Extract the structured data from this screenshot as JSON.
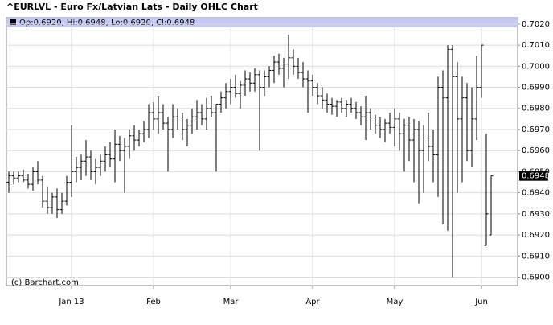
{
  "chart_data": {
    "type": "ohlc",
    "title": "^EURLVL - Euro Fx/Latvian Lats - Daily OHLC Chart",
    "legend_text": "Op:0.6920, Hi:0.6948, Lo:0.6920, Cl:0.6948",
    "watermark": "(c) Barchart.com",
    "last_label": "0.6948",
    "color": "#000000",
    "grid": true,
    "categories": [
      null,
      null,
      null,
      null,
      null,
      null,
      null,
      null,
      null,
      null,
      null,
      null,
      null,
      "Jan 13",
      null,
      null,
      null,
      null,
      null,
      null,
      null,
      null,
      null,
      null,
      null,
      null,
      null,
      null,
      null,
      null,
      "Feb",
      null,
      null,
      null,
      null,
      null,
      null,
      null,
      null,
      null,
      null,
      null,
      null,
      null,
      null,
      null,
      "Mar",
      null,
      null,
      null,
      null,
      null,
      null,
      null,
      null,
      null,
      null,
      null,
      null,
      null,
      null,
      null,
      null,
      "Apr",
      null,
      null,
      null,
      null,
      null,
      null,
      null,
      null,
      null,
      null,
      null,
      null,
      null,
      null,
      null,
      null,
      "May",
      null,
      null,
      null,
      null,
      null,
      null,
      null,
      null,
      null,
      null,
      null,
      null,
      null,
      null,
      null,
      null,
      null,
      "Jun",
      null,
      null
    ],
    "open": [
      0.6945,
      0.6948,
      0.6947,
      0.6948,
      0.6946,
      0.6944,
      0.695,
      0.6946,
      0.6936,
      0.6933,
      0.6938,
      0.6932,
      0.6936,
      0.6945,
      0.695,
      0.6952,
      0.6955,
      0.6957,
      0.695,
      0.6952,
      0.6955,
      0.6958,
      0.6956,
      0.6963,
      0.696,
      0.6962,
      0.6967,
      0.6965,
      0.6968,
      0.697,
      0.6978,
      0.6975,
      0.6978,
      0.6973,
      0.697,
      0.6976,
      0.6974,
      0.697,
      0.6972,
      0.6976,
      0.6978,
      0.6975,
      0.698,
      0.6978,
      0.6982,
      0.6985,
      0.6988,
      0.699,
      0.6987,
      0.6991,
      0.6994,
      0.6992,
      0.6996,
      0.699,
      0.6995,
      0.6998,
      0.7002,
      0.6999,
      0.7001,
      0.7004,
      0.7,
      0.6997,
      0.6994,
      0.6993,
      0.699,
      0.6986,
      0.6984,
      0.6982,
      0.6981,
      0.6983,
      0.698,
      0.6982,
      0.698,
      0.6978,
      0.6976,
      0.6978,
      0.6974,
      0.6972,
      0.697,
      0.6973,
      0.6971,
      0.6975,
      0.6968,
      0.6972,
      0.6965,
      0.697,
      0.696,
      0.6966,
      0.6962,
      0.6958,
      0.699,
      0.6985,
      0.7008,
      0.6995,
      0.6975,
      0.6985,
      0.696,
      0.6975,
      0.699,
      0.6915,
      0.692
    ],
    "high": [
      0.695,
      0.695,
      0.695,
      0.6951,
      0.6949,
      0.6952,
      0.6955,
      0.6948,
      0.6943,
      0.694,
      0.6942,
      0.694,
      0.6948,
      0.6972,
      0.6957,
      0.6958,
      0.6965,
      0.696,
      0.6956,
      0.6958,
      0.6962,
      0.6964,
      0.697,
      0.6967,
      0.6966,
      0.697,
      0.6972,
      0.697,
      0.6974,
      0.6982,
      0.6983,
      0.6986,
      0.6982,
      0.6976,
      0.6982,
      0.698,
      0.6978,
      0.6975,
      0.698,
      0.6984,
      0.6982,
      0.6985,
      0.6986,
      0.6982,
      0.6988,
      0.6992,
      0.6994,
      0.6996,
      0.6993,
      0.6998,
      0.6997,
      0.6999,
      0.6998,
      0.6998,
      0.7,
      0.7005,
      0.7006,
      0.7004,
      0.7015,
      0.7008,
      0.7004,
      0.7002,
      0.6998,
      0.6996,
      0.6992,
      0.699,
      0.6987,
      0.6985,
      0.6984,
      0.6985,
      0.6984,
      0.6985,
      0.6983,
      0.6981,
      0.6986,
      0.698,
      0.6977,
      0.6976,
      0.6975,
      0.6978,
      0.698,
      0.6978,
      0.6975,
      0.6976,
      0.6975,
      0.6974,
      0.6972,
      0.6978,
      0.697,
      0.6995,
      0.6998,
      0.701,
      0.701,
      0.7002,
      0.6995,
      0.6992,
      0.699,
      0.7005,
      0.701,
      0.6968,
      0.6948
    ],
    "low": [
      0.694,
      0.6944,
      0.6945,
      0.6945,
      0.6942,
      0.6941,
      0.6944,
      0.6933,
      0.693,
      0.693,
      0.6928,
      0.693,
      0.6934,
      0.6938,
      0.6945,
      0.6946,
      0.6948,
      0.6946,
      0.6944,
      0.6948,
      0.695,
      0.6952,
      0.6945,
      0.6955,
      0.694,
      0.6956,
      0.696,
      0.6962,
      0.6964,
      0.6966,
      0.697,
      0.6968,
      0.697,
      0.695,
      0.6966,
      0.697,
      0.6965,
      0.6962,
      0.6968,
      0.697,
      0.6972,
      0.697,
      0.6976,
      0.695,
      0.6978,
      0.698,
      0.6982,
      0.6985,
      0.698,
      0.6986,
      0.6988,
      0.6988,
      0.696,
      0.6986,
      0.699,
      0.6992,
      0.6996,
      0.699,
      0.6994,
      0.6996,
      0.6994,
      0.699,
      0.6978,
      0.6986,
      0.6982,
      0.698,
      0.6978,
      0.6977,
      0.6976,
      0.6978,
      0.6976,
      0.6978,
      0.6975,
      0.6972,
      0.6965,
      0.697,
      0.6968,
      0.6966,
      0.6964,
      0.6968,
      0.6962,
      0.696,
      0.695,
      0.6955,
      0.6945,
      0.6935,
      0.694,
      0.6955,
      0.6945,
      0.6938,
      0.6925,
      0.6922,
      0.69,
      0.694,
      0.6945,
      0.6955,
      0.6952,
      0.6965,
      0.6985,
      0.6915,
      0.692
    ],
    "close": [
      0.6948,
      0.6947,
      0.6948,
      0.6946,
      0.6944,
      0.695,
      0.6946,
      0.6936,
      0.6933,
      0.6938,
      0.6932,
      0.6936,
      0.6945,
      0.695,
      0.6952,
      0.6955,
      0.6957,
      0.695,
      0.6952,
      0.6955,
      0.6958,
      0.6956,
      0.6963,
      0.696,
      0.6962,
      0.6967,
      0.6965,
      0.6968,
      0.697,
      0.6978,
      0.6975,
      0.6978,
      0.6973,
      0.697,
      0.6976,
      0.6974,
      0.697,
      0.6972,
      0.6976,
      0.6978,
      0.6975,
      0.698,
      0.6978,
      0.6982,
      0.6985,
      0.6988,
      0.699,
      0.6987,
      0.6991,
      0.6994,
      0.6992,
      0.6996,
      0.699,
      0.6995,
      0.6998,
      0.7002,
      0.6999,
      0.7001,
      0.7004,
      0.7,
      0.6997,
      0.6994,
      0.6993,
      0.699,
      0.6986,
      0.6984,
      0.6982,
      0.6981,
      0.6983,
      0.698,
      0.6982,
      0.698,
      0.6978,
      0.6976,
      0.6978,
      0.6974,
      0.6972,
      0.697,
      0.6973,
      0.6971,
      0.6975,
      0.6968,
      0.6972,
      0.6965,
      0.697,
      0.696,
      0.6966,
      0.6962,
      0.6958,
      0.699,
      0.6985,
      0.7008,
      0.6995,
      0.6975,
      0.6985,
      0.696,
      0.6975,
      0.699,
      0.701,
      0.693,
      0.6948
    ],
    "ylim": [
      0.6896,
      0.7023
    ],
    "yticks": [
      {
        "value": 0.69,
        "label": "0.6900"
      },
      {
        "value": 0.691,
        "label": "0.6910"
      },
      {
        "value": 0.692,
        "label": "0.6920"
      },
      {
        "value": 0.693,
        "label": "0.6930"
      },
      {
        "value": 0.694,
        "label": "0.6940"
      },
      {
        "value": 0.695,
        "label": "0.6950"
      },
      {
        "value": 0.696,
        "label": "0.6960"
      },
      {
        "value": 0.697,
        "label": "0.6970"
      },
      {
        "value": 0.698,
        "label": "0.6980"
      },
      {
        "value": 0.699,
        "label": "0.6990"
      },
      {
        "value": 0.7,
        "label": "0.7000"
      },
      {
        "value": 0.701,
        "label": "0.7010"
      },
      {
        "value": 0.702,
        "label": "0.7020"
      }
    ]
  }
}
